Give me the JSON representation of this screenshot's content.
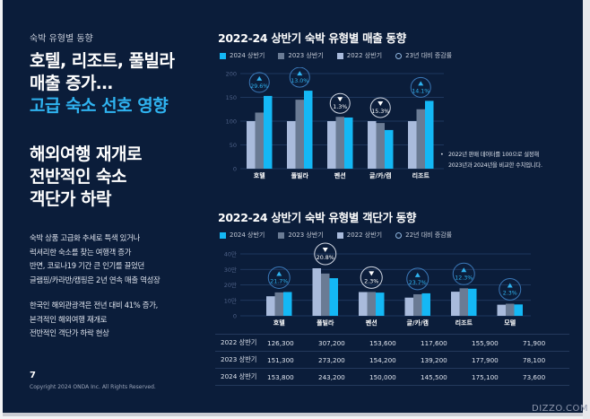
{
  "page": {
    "eyebrow": "숙박 유형별 동향",
    "headline": {
      "line1": "호텔, 리조트, 풀빌라",
      "line2": "매출 증가…",
      "line3_accent": "고급 숙소 선호 영향"
    },
    "headline2": {
      "line1": "해외여행 재개로",
      "line2": "전반적인 숙소",
      "line3": "객단가 하락"
    },
    "body1": [
      "숙박 상품 고급화 추세로 특색 있거나",
      "럭셔리한 숙소를 찾는 여행객 증가",
      "반면, 코로나19 기간 큰 인기를 끌었던",
      "글램핑/카라반/캠핑은 2년 연속 매출 역성장"
    ],
    "body2": [
      "한국인 해외관광객은 전년 대비 41% 증가,",
      "본격적인 해외여행 재개로",
      "전반적인 객단가 하락 현상"
    ],
    "page_number": "7",
    "copyright": "Copyright 2024 ONDA Inc. All Rights Reserved.",
    "watermark": "DIZZO.COM",
    "colors": {
      "background": "#0b1d3a",
      "accent": "#2fb3f0",
      "series_2024": "#14b8f5",
      "series_2023": "#6a7b94",
      "series_2022": "#a9bbdc"
    }
  },
  "chart_data": [
    {
      "type": "bar",
      "title": "2022-24 상반기 숙박 유형별 매출 동향",
      "legend": [
        "2024 상반기",
        "2023 상반기",
        "2022 상반기",
        "23년 대비 증감률"
      ],
      "legend_position": "top-left",
      "categories": [
        "호텔",
        "풀빌라",
        "펜션",
        "글/카/캠",
        "리조트"
      ],
      "series": [
        {
          "name": "2022 상반기",
          "values": [
            100,
            100,
            100,
            100,
            100
          ]
        },
        {
          "name": "2023 상반기",
          "values": [
            118,
            145,
            109,
            96,
            125
          ]
        },
        {
          "name": "2024 상반기",
          "values": [
            153,
            164,
            107.6,
            81.3,
            142.6
          ]
        }
      ],
      "change_vs_2023": [
        {
          "direction": "up",
          "label": "29.6%"
        },
        {
          "direction": "up",
          "label": "13.0%"
        },
        {
          "direction": "down",
          "label": "1.3%"
        },
        {
          "direction": "down",
          "label": "15.3%"
        },
        {
          "direction": "up",
          "label": "14.1%"
        }
      ],
      "yticks": [
        "0",
        "50",
        "100",
        "150",
        "200"
      ],
      "ylim": [
        0,
        200
      ],
      "grid": true,
      "note": [
        "2022년 판매 데이터를 100으로 설정해",
        "2023년과 2024년을 비교한 수치입니다."
      ]
    },
    {
      "type": "bar",
      "title": "2022-24 상반기 숙박 유형별 객단가 동향",
      "legend": [
        "2024 상반기",
        "2023 상반기",
        "2022 상반기",
        "22년 대비 증감률"
      ],
      "legend_position": "top-left",
      "categories": [
        "호텔",
        "풀빌라",
        "펜션",
        "글/카/캠",
        "리조트",
        "모텔"
      ],
      "series": [
        {
          "name": "2022 상반기",
          "values": [
            126300,
            307200,
            153600,
            117600,
            155900,
            71900
          ]
        },
        {
          "name": "2023 상반기",
          "values": [
            151300,
            273200,
            154200,
            139200,
            177900,
            78100
          ]
        },
        {
          "name": "2024 상반기",
          "values": [
            153800,
            243200,
            150000,
            145500,
            175100,
            73600
          ]
        }
      ],
      "change_vs_2022": [
        {
          "direction": "up",
          "label": "21.7%"
        },
        {
          "direction": "down",
          "label": "20.8%"
        },
        {
          "direction": "down",
          "label": "2.3%"
        },
        {
          "direction": "up",
          "label": "23.7%"
        },
        {
          "direction": "up",
          "label": "12.3%"
        },
        {
          "direction": "up",
          "label": "2.3%"
        }
      ],
      "yticks": [
        "0",
        "10만",
        "20만",
        "30만",
        "40만"
      ],
      "ylim": [
        0,
        400000
      ],
      "grid": true,
      "table": {
        "rows": [
          {
            "label": "2022 상반기",
            "values": [
              "126,300",
              "307,200",
              "153,600",
              "117,600",
              "155,900",
              "71,900"
            ]
          },
          {
            "label": "2023 상반기",
            "values": [
              "151,300",
              "273,200",
              "154,200",
              "139,200",
              "177,900",
              "78,100"
            ]
          },
          {
            "label": "2024 상반기",
            "values": [
              "153,800",
              "243,200",
              "150,000",
              "145,500",
              "175,100",
              "73,600"
            ]
          }
        ]
      }
    }
  ]
}
